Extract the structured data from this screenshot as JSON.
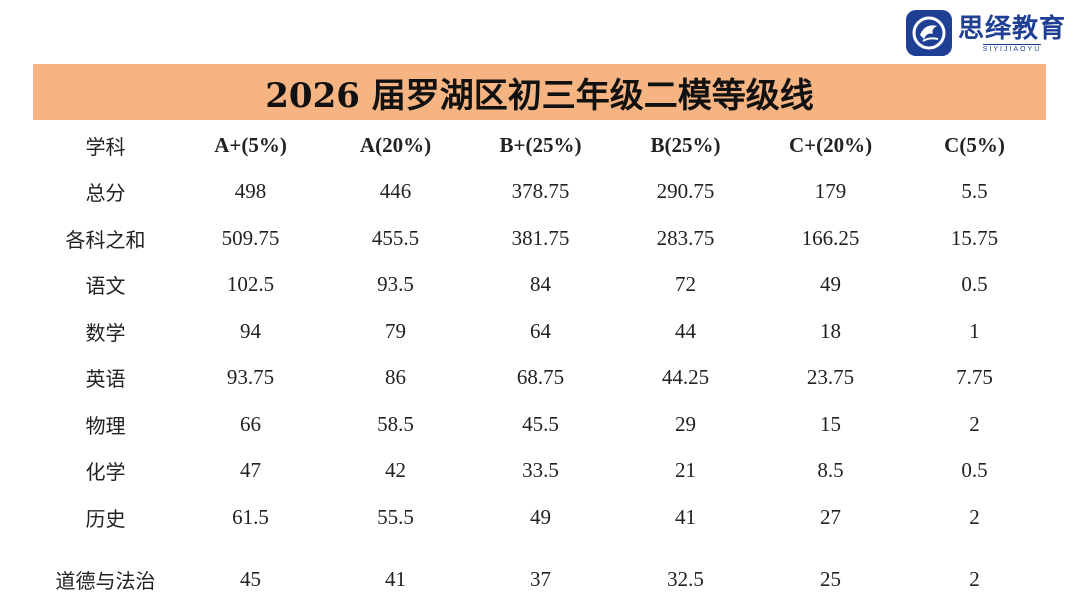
{
  "logo": {
    "name": "思绎教育",
    "subtitle": "SIYIJIAOYU",
    "accent_color": "#1f3f95"
  },
  "title": "2026 届罗湖区初三年级二模等级线",
  "title_bar_color": "#f5b482",
  "table": {
    "headers": [
      "学科",
      "A+(5%)",
      "A(20%)",
      "B+(25%)",
      "B(25%)",
      "C+(20%)",
      "C(5%)"
    ],
    "rows": [
      [
        "总分",
        "498",
        "446",
        "378.75",
        "290.75",
        "179",
        "5.5"
      ],
      [
        "各科之和",
        "509.75",
        "455.5",
        "381.75",
        "283.75",
        "166.25",
        "15.75"
      ],
      [
        "语文",
        "102.5",
        "93.5",
        "84",
        "72",
        "49",
        "0.5"
      ],
      [
        "数学",
        "94",
        "79",
        "64",
        "44",
        "18",
        "1"
      ],
      [
        "英语",
        "93.75",
        "86",
        "68.75",
        "44.25",
        "23.75",
        "7.75"
      ],
      [
        "物理",
        "66",
        "58.5",
        "45.5",
        "29",
        "15",
        "2"
      ],
      [
        "化学",
        "47",
        "42",
        "33.5",
        "21",
        "8.5",
        "0.5"
      ],
      [
        "历史",
        "61.5",
        "55.5",
        "49",
        "41",
        "27",
        "2"
      ],
      [
        "道德与法治",
        "45",
        "41",
        "37",
        "32.5",
        "25",
        "2"
      ]
    ]
  }
}
